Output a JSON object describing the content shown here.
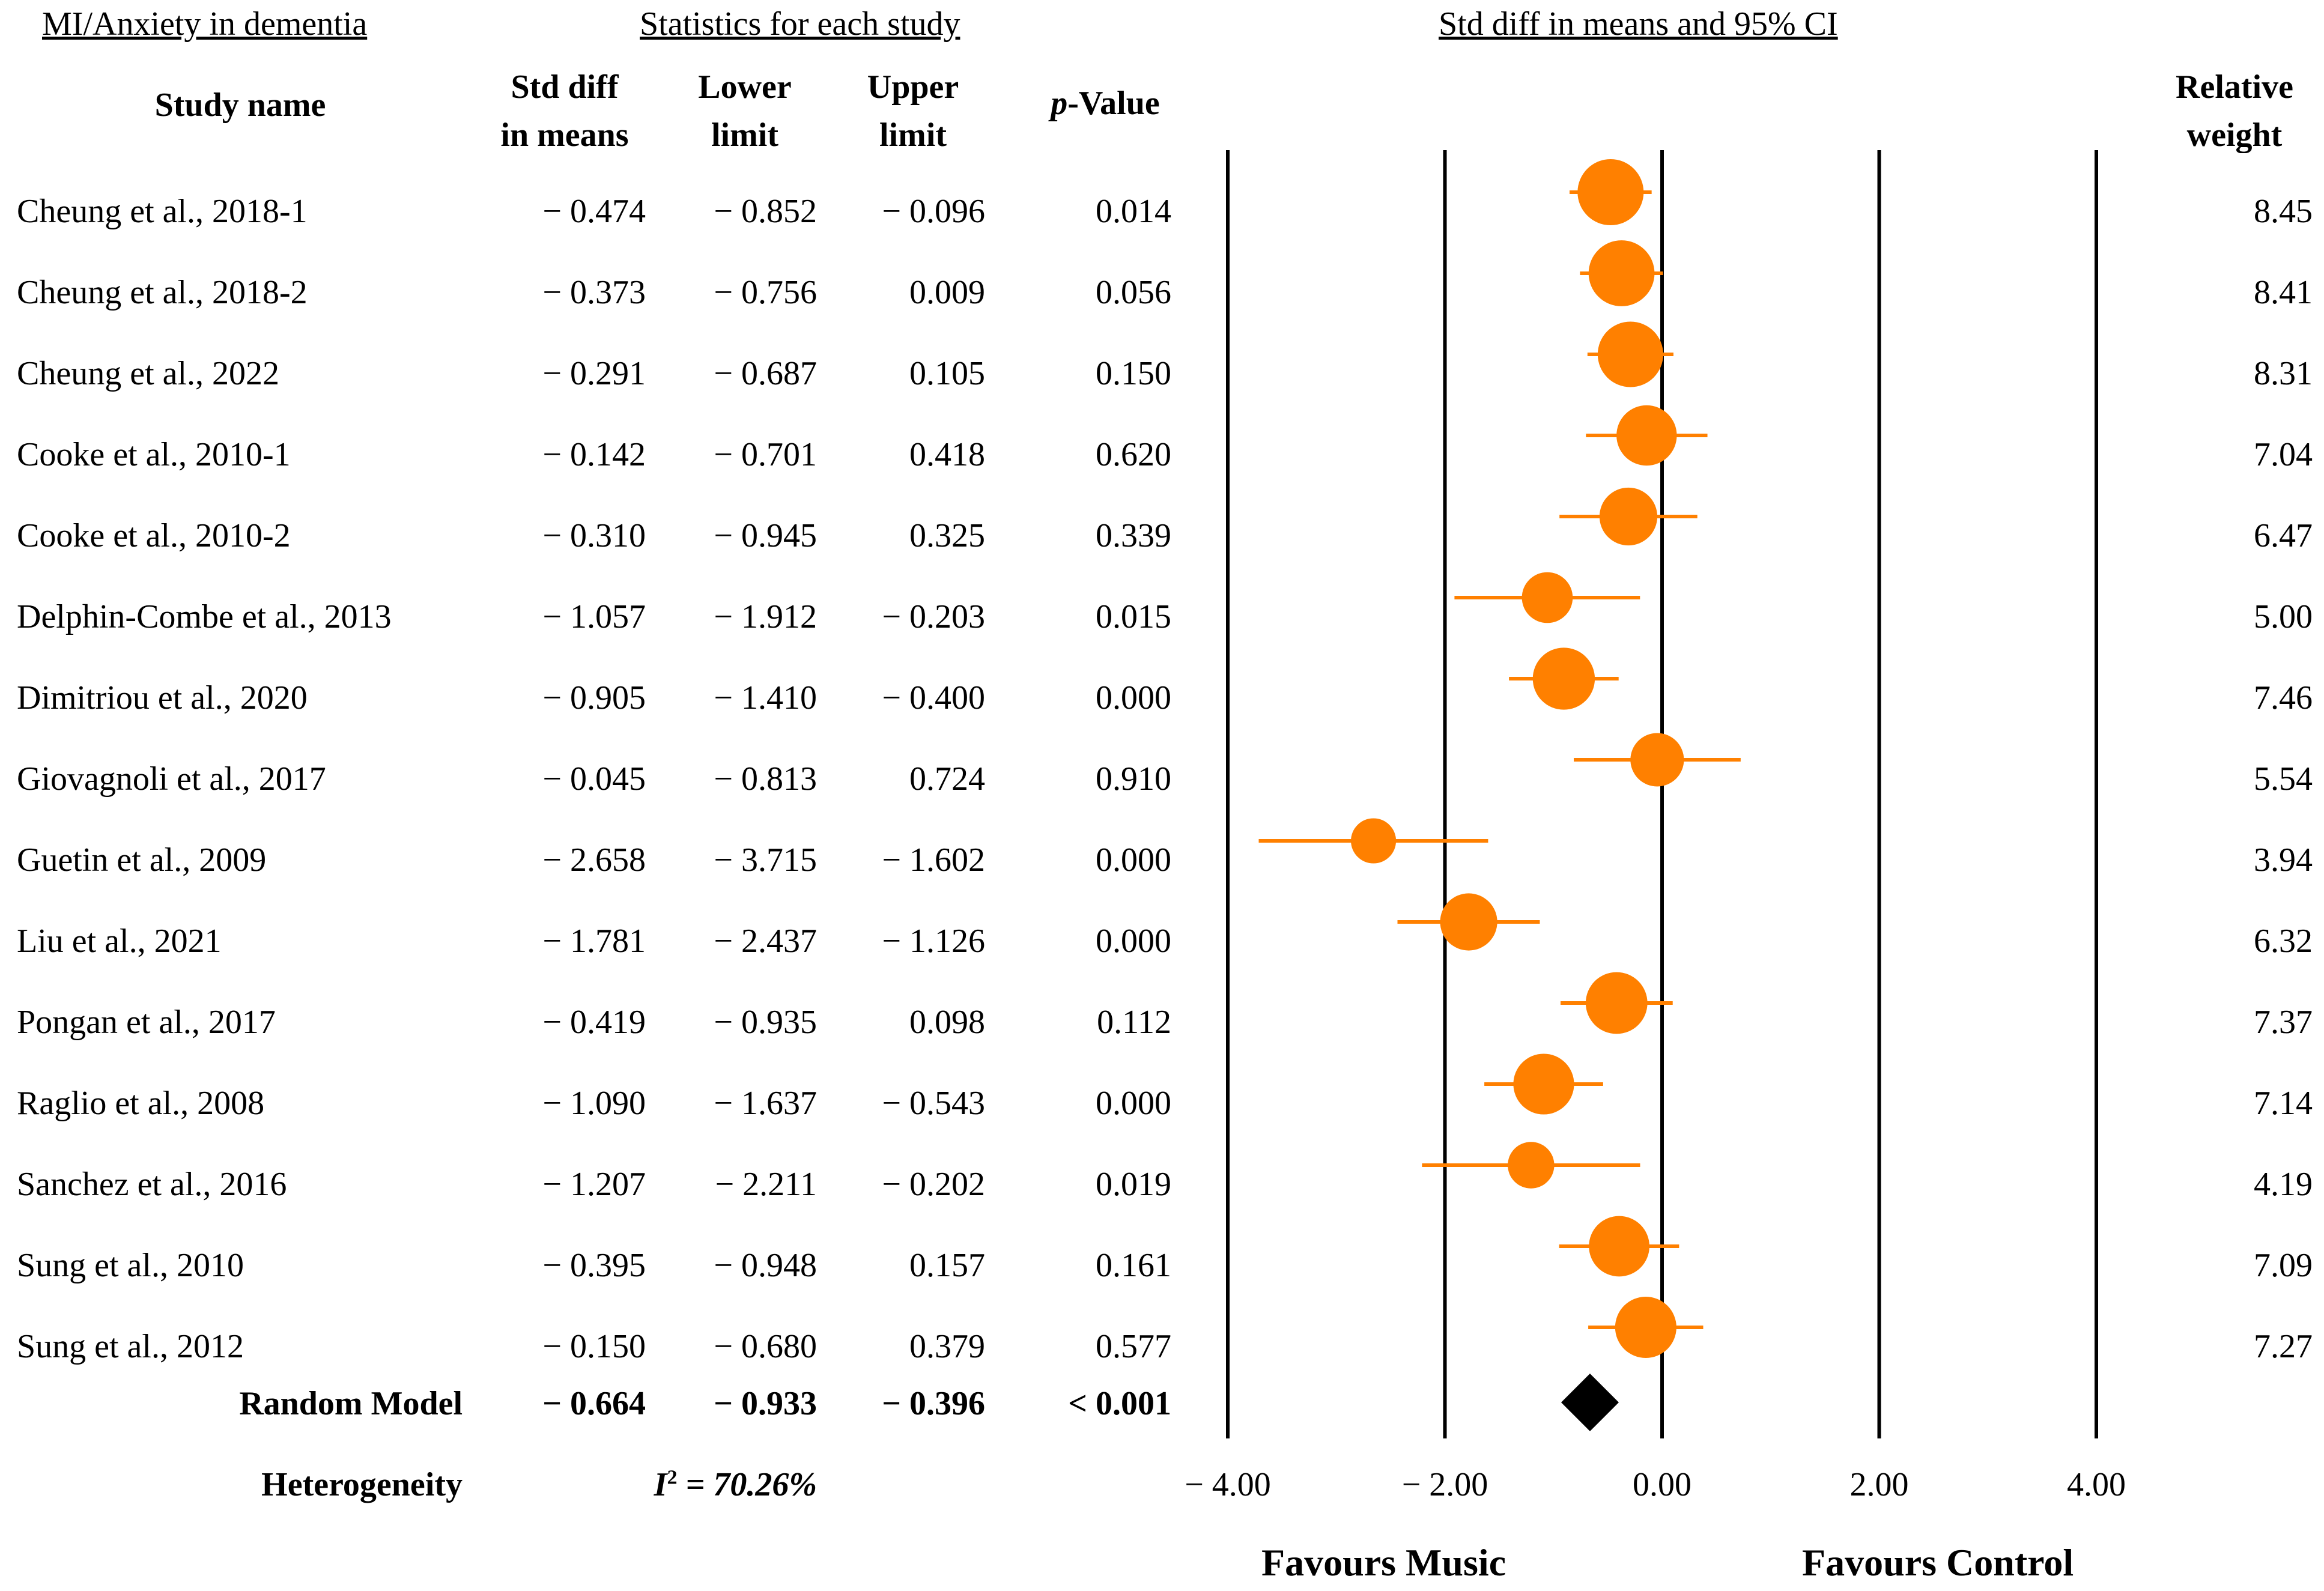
{
  "headers": {
    "left": "MI/Anxiety in dementia",
    "middle": "Statistics for each study",
    "right": "Std diff in means and 95% CI"
  },
  "columns": {
    "study": "Study name",
    "std_diff_1": "Std diff",
    "std_diff_2": "in means",
    "lower_1": "Lower",
    "lower_2": "limit",
    "upper_1": "Upper",
    "upper_2": "limit",
    "pvalue_italic": "p",
    "pvalue_rest": "-Value",
    "weight_1": "Relative",
    "weight_2": "weight"
  },
  "studies": [
    {
      "name": "Cheung et al., 2018-1",
      "smd": "− 0.474",
      "lower": "− 0.852",
      "upper": "− 0.096",
      "p": "0.014",
      "weight": "8.45"
    },
    {
      "name": "Cheung et al., 2018-2",
      "smd": "− 0.373",
      "lower": "− 0.756",
      "upper": "0.009",
      "p": "0.056",
      "weight": "8.41"
    },
    {
      "name": "Cheung et al., 2022",
      "smd": "− 0.291",
      "lower": "− 0.687",
      "upper": "0.105",
      "p": "0.150",
      "weight": "8.31"
    },
    {
      "name": "Cooke et al., 2010-1",
      "smd": "− 0.142",
      "lower": "− 0.701",
      "upper": "0.418",
      "p": "0.620",
      "weight": "7.04"
    },
    {
      "name": "Cooke et al., 2010-2",
      "smd": "− 0.310",
      "lower": "− 0.945",
      "upper": "0.325",
      "p": "0.339",
      "weight": "6.47"
    },
    {
      "name": "Delphin-Combe et al., 2013",
      "smd": "− 1.057",
      "lower": "− 1.912",
      "upper": "− 0.203",
      "p": "0.015",
      "weight": "5.00"
    },
    {
      "name": "Dimitriou et al., 2020",
      "smd": "− 0.905",
      "lower": "− 1.410",
      "upper": "− 0.400",
      "p": "0.000",
      "weight": "7.46"
    },
    {
      "name": "Giovagnoli et al., 2017",
      "smd": "− 0.045",
      "lower": "− 0.813",
      "upper": "0.724",
      "p": "0.910",
      "weight": "5.54"
    },
    {
      "name": "Guetin et al., 2009",
      "smd": "− 2.658",
      "lower": "− 3.715",
      "upper": "− 1.602",
      "p": "0.000",
      "weight": "3.94"
    },
    {
      "name": "Liu et al., 2021",
      "smd": "− 1.781",
      "lower": "− 2.437",
      "upper": "− 1.126",
      "p": "0.000",
      "weight": "6.32"
    },
    {
      "name": "Pongan et al., 2017",
      "smd": "− 0.419",
      "lower": "− 0.935",
      "upper": "0.098",
      "p": "0.112",
      "weight": "7.37"
    },
    {
      "name": "Raglio et al., 2008",
      "smd": "− 1.090",
      "lower": "− 1.637",
      "upper": "− 0.543",
      "p": "0.000",
      "weight": "7.14"
    },
    {
      "name": "Sanchez et al., 2016",
      "smd": "− 1.207",
      "lower": "− 2.211",
      "upper": "− 0.202",
      "p": "0.019",
      "weight": "4.19"
    },
    {
      "name": "Sung et al., 2010",
      "smd": "− 0.395",
      "lower": "− 0.948",
      "upper": "0.157",
      "p": "0.161",
      "weight": "7.09"
    },
    {
      "name": "Sung et al., 2012",
      "smd": "− 0.150",
      "lower": "− 0.680",
      "upper": "0.379",
      "p": "0.577",
      "weight": "7.27"
    }
  ],
  "summary": {
    "label": "Random Model",
    "smd": "− 0.664",
    "lower": "− 0.933",
    "upper": "− 0.396",
    "p": "< 0.001"
  },
  "heterogeneity": {
    "label": "Heterogeneity",
    "i2_symbol": "I",
    "i2_sup": "2",
    "i2_value": " = 70.26%"
  },
  "favours": {
    "left": "Favours Music",
    "right": "Favours Control"
  },
  "colors": {
    "marker": "#ff8000",
    "summary": "#000000",
    "line": "#000000"
  },
  "chart_data": {
    "type": "forest",
    "title": "Std diff in means and 95% CI",
    "xlabel": "",
    "xlim": [
      -4,
      4
    ],
    "ticks": [
      -4,
      -2,
      0,
      2,
      4
    ],
    "tick_labels": [
      "− 4.00",
      "− 2.00",
      "0.00",
      "2.00",
      "4.00"
    ],
    "points": [
      {
        "name": "Cheung et al., 2018-1",
        "estimate": -0.474,
        "lower": -0.852,
        "upper": -0.096,
        "weight": 8.45
      },
      {
        "name": "Cheung et al., 2018-2",
        "estimate": -0.373,
        "lower": -0.756,
        "upper": 0.009,
        "weight": 8.41
      },
      {
        "name": "Cheung et al., 2022",
        "estimate": -0.291,
        "lower": -0.687,
        "upper": 0.105,
        "weight": 8.31
      },
      {
        "name": "Cooke et al., 2010-1",
        "estimate": -0.142,
        "lower": -0.701,
        "upper": 0.418,
        "weight": 7.04
      },
      {
        "name": "Cooke et al., 2010-2",
        "estimate": -0.31,
        "lower": -0.945,
        "upper": 0.325,
        "weight": 6.47
      },
      {
        "name": "Delphin-Combe et al., 2013",
        "estimate": -1.057,
        "lower": -1.912,
        "upper": -0.203,
        "weight": 5.0
      },
      {
        "name": "Dimitriou et al., 2020",
        "estimate": -0.905,
        "lower": -1.41,
        "upper": -0.4,
        "weight": 7.46
      },
      {
        "name": "Giovagnoli et al., 2017",
        "estimate": -0.045,
        "lower": -0.813,
        "upper": 0.724,
        "weight": 5.54
      },
      {
        "name": "Guetin et al., 2009",
        "estimate": -2.658,
        "lower": -3.715,
        "upper": -1.602,
        "weight": 3.94
      },
      {
        "name": "Liu et al., 2021",
        "estimate": -1.781,
        "lower": -2.437,
        "upper": -1.126,
        "weight": 6.32
      },
      {
        "name": "Pongan et al., 2017",
        "estimate": -0.419,
        "lower": -0.935,
        "upper": 0.098,
        "weight": 7.37
      },
      {
        "name": "Raglio et al., 2008",
        "estimate": -1.09,
        "lower": -1.637,
        "upper": -0.543,
        "weight": 7.14
      },
      {
        "name": "Sanchez et al., 2016",
        "estimate": -1.207,
        "lower": -2.211,
        "upper": -0.202,
        "weight": 4.19
      },
      {
        "name": "Sung et al., 2010",
        "estimate": -0.395,
        "lower": -0.948,
        "upper": 0.157,
        "weight": 7.09
      },
      {
        "name": "Sung et al., 2012",
        "estimate": -0.15,
        "lower": -0.68,
        "upper": 0.379,
        "weight": 7.27
      }
    ],
    "summary": {
      "name": "Random Model",
      "estimate": -0.664,
      "lower": -0.933,
      "upper": -0.396
    }
  }
}
